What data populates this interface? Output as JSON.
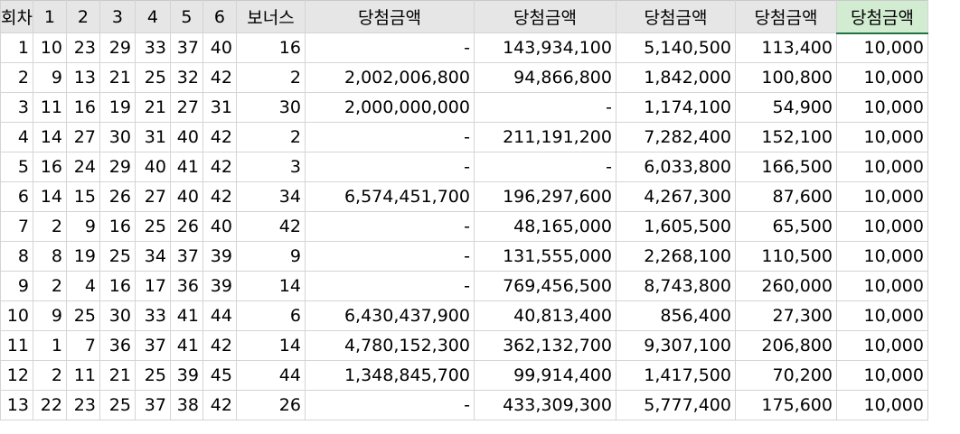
{
  "sheet": {
    "headers": [
      "회차",
      "1",
      "2",
      "3",
      "4",
      "5",
      "6",
      "보너스",
      "당첨금액",
      "당첨금액",
      "당첨금액",
      "당첨금액",
      "당첨금액"
    ],
    "selected_header_index": 12,
    "rows": [
      [
        "1",
        "10",
        "23",
        "29",
        "33",
        "37",
        "40",
        "16",
        "-",
        "143,934,100",
        "5,140,500",
        "113,400",
        "10,000"
      ],
      [
        "2",
        "9",
        "13",
        "21",
        "25",
        "32",
        "42",
        "2",
        "2,002,006,800",
        "94,866,800",
        "1,842,000",
        "100,800",
        "10,000"
      ],
      [
        "3",
        "11",
        "16",
        "19",
        "21",
        "27",
        "31",
        "30",
        "2,000,000,000",
        "-",
        "1,174,100",
        "54,900",
        "10,000"
      ],
      [
        "4",
        "14",
        "27",
        "30",
        "31",
        "40",
        "42",
        "2",
        "-",
        "211,191,200",
        "7,282,400",
        "152,100",
        "10,000"
      ],
      [
        "5",
        "16",
        "24",
        "29",
        "40",
        "41",
        "42",
        "3",
        "-",
        "-",
        "6,033,800",
        "166,500",
        "10,000"
      ],
      [
        "6",
        "14",
        "15",
        "26",
        "27",
        "40",
        "42",
        "34",
        "6,574,451,700",
        "196,297,600",
        "4,267,300",
        "87,600",
        "10,000"
      ],
      [
        "7",
        "2",
        "9",
        "16",
        "25",
        "26",
        "40",
        "42",
        "-",
        "48,165,000",
        "1,605,500",
        "65,500",
        "10,000"
      ],
      [
        "8",
        "8",
        "19",
        "25",
        "34",
        "37",
        "39",
        "9",
        "-",
        "131,555,000",
        "2,268,100",
        "110,500",
        "10,000"
      ],
      [
        "9",
        "2",
        "4",
        "16",
        "17",
        "36",
        "39",
        "14",
        "-",
        "769,456,500",
        "8,743,800",
        "260,000",
        "10,000"
      ],
      [
        "10",
        "9",
        "25",
        "30",
        "33",
        "41",
        "44",
        "6",
        "6,430,437,900",
        "40,813,400",
        "856,400",
        "27,300",
        "10,000"
      ],
      [
        "11",
        "1",
        "7",
        "36",
        "37",
        "41",
        "42",
        "14",
        "4,780,152,300",
        "362,132,700",
        "9,307,100",
        "206,800",
        "10,000"
      ],
      [
        "12",
        "2",
        "11",
        "21",
        "25",
        "39",
        "45",
        "44",
        "1,348,845,700",
        "99,914,400",
        "1,417,500",
        "70,200",
        "10,000"
      ],
      [
        "13",
        "22",
        "23",
        "25",
        "37",
        "38",
        "42",
        "26",
        "-",
        "433,309,300",
        "5,777,400",
        "175,600",
        "10,000"
      ]
    ]
  }
}
